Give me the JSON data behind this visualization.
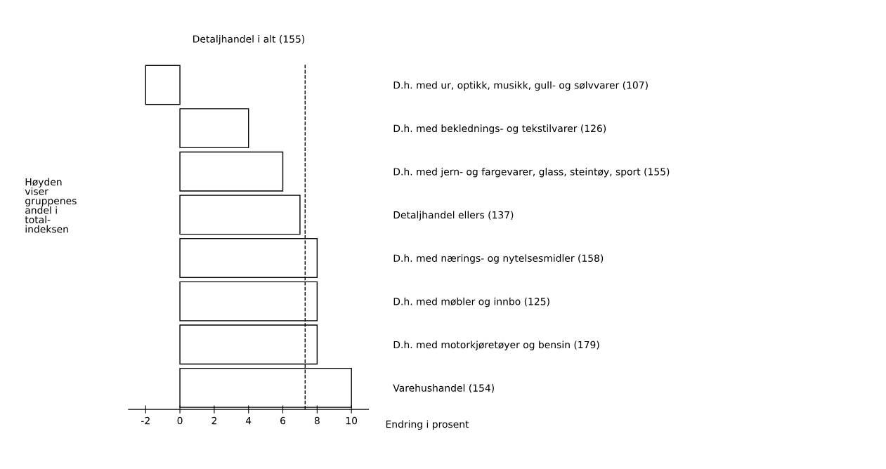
{
  "chart_data": {
    "type": "bar",
    "orientation": "horizontal",
    "categories": [
      "D.h. med ur, optikk, musikk, gull- og sølvvarer (107)",
      "D.h. med beklednings- og tekstilvarer (126)",
      "D.h. med jern- og fargevarer, glass, steintøy, sport (155)",
      "Detaljhandel ellers (137)",
      "D.h. med nærings- og nytelsesmidler (158)",
      "D.h. med møbler og innbo (125)",
      "D.h. med motorkjøretøyer og bensin (179)",
      "Varehushandel (154)"
    ],
    "values": [
      -2.0,
      4.0,
      6.0,
      7.0,
      8.0,
      8.0,
      8.0,
      10.0
    ],
    "color": "#ffffff",
    "xlim": [
      -3,
      11
    ],
    "xticks": [
      -2,
      0,
      2,
      4,
      6,
      8,
      10
    ],
    "xlabel": "Endring i prosent",
    "annotations": [
      "Høyden\nviser\ngruppenes\nandel i\ntotal-\nindeksen"
    ],
    "ref_lines": [
      {
        "axis": "x",
        "value": 7.3,
        "label": "Detaljhandel i alt (155)",
        "line_style": "dashed",
        "color": "#000000"
      }
    ],
    "grid": false,
    "legend": false
  }
}
